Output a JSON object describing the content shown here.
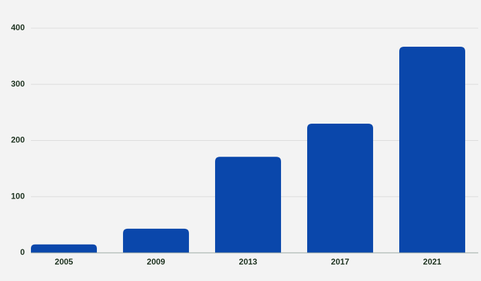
{
  "chart_data": {
    "type": "bar",
    "categories": [
      "2005",
      "2009",
      "2013",
      "2017",
      "2021"
    ],
    "values": [
      15,
      43,
      171,
      230,
      367
    ],
    "color": "#0a47ab",
    "ylim": [
      0,
      400
    ],
    "yticks": [
      0,
      100,
      200,
      300,
      400
    ],
    "grid": true
  }
}
